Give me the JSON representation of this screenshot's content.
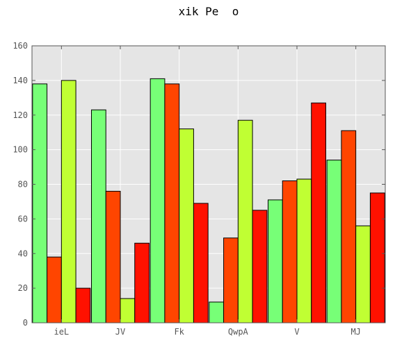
{
  "chart_data": {
    "type": "bar",
    "title": "xik Pe  o",
    "xlabel": "",
    "ylabel": "",
    "ylim": [
      0,
      160
    ],
    "yticks": [
      0,
      20,
      40,
      60,
      80,
      100,
      120,
      140,
      160
    ],
    "grid": true,
    "categories": [
      "ieL",
      "JV",
      "Fk",
      "QwpA",
      "V",
      "MJ"
    ],
    "series": [
      {
        "color": "#77ff77",
        "values": [
          138,
          123,
          141,
          12,
          71,
          94
        ]
      },
      {
        "color": "#ff4500",
        "values": [
          38,
          76,
          138,
          49,
          82,
          111
        ]
      },
      {
        "color": "#c0ff33",
        "values": [
          140,
          14,
          112,
          117,
          83,
          56
        ]
      },
      {
        "color": "#ff1100",
        "values": [
          20,
          46,
          69,
          65,
          127,
          75
        ]
      }
    ],
    "plot_background": "#e5e5e5",
    "grid_color": "#ffffff"
  }
}
